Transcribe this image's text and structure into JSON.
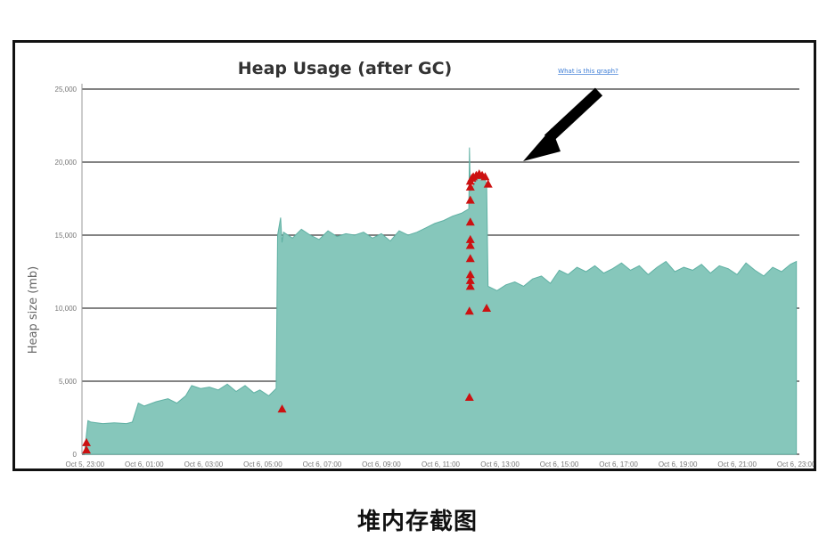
{
  "caption": "堆内存截图",
  "link_label": "What is this graph?",
  "colors": {
    "area": "#86c7bb",
    "area_stroke": "#5fb0a3",
    "marker": "#cc1111",
    "arrow": "#000000",
    "grid": "#5a5a5a",
    "link": "#3a7bd5"
  },
  "chart_data": {
    "type": "area",
    "title": "Heap Usage (after GC)",
    "ylabel": "Heap size (mb)",
    "xlabel": "",
    "ylim": [
      0,
      25000
    ],
    "yticks": [
      0,
      5000,
      10000,
      15000,
      20000,
      25000
    ],
    "ytick_labels": [
      "0",
      "5,000",
      "10,000",
      "15,000",
      "20,000",
      "25,000"
    ],
    "xlim": [
      22.9,
      47.1
    ],
    "xticks": [
      23,
      25,
      27,
      29,
      31,
      33,
      35,
      37,
      39,
      41,
      43,
      45,
      47
    ],
    "xtick_labels": [
      "Oct 5, 23:00",
      "Oct 6, 01:00",
      "Oct 6, 03:00",
      "Oct 6, 05:00",
      "Oct 6, 07:00",
      "Oct 6, 09:00",
      "Oct 6, 11:00",
      "Oct 6, 13:00",
      "Oct 6, 15:00",
      "Oct 6, 17:00",
      "Oct 6, 19:00",
      "Oct 6, 21:00",
      "Oct 6, 23:00"
    ],
    "grid": true,
    "series": [
      {
        "x": [
          23.0,
          23.1,
          23.2,
          23.6,
          24.0,
          24.4,
          24.6,
          24.8,
          25.0,
          25.4,
          25.8,
          26.1,
          26.4,
          26.6,
          26.9,
          27.2,
          27.5,
          27.8,
          28.1,
          28.4,
          28.7,
          28.9,
          29.2,
          29.45,
          29.5,
          29.6,
          29.65,
          29.7,
          30.0,
          30.3,
          30.6,
          30.9,
          31.2,
          31.5,
          31.8,
          32.1,
          32.4,
          32.7,
          33.0,
          33.3,
          33.6,
          33.9,
          34.2,
          34.5,
          34.8,
          35.1,
          35.4,
          35.7,
          35.95,
          35.97,
          36.0,
          36.2,
          36.4,
          36.55,
          36.6,
          36.9,
          37.2,
          37.5,
          37.8,
          38.1,
          38.4,
          38.7,
          39.0,
          39.3,
          39.6,
          39.9,
          40.2,
          40.5,
          40.8,
          41.1,
          41.4,
          41.7,
          42.0,
          42.3,
          42.6,
          42.9,
          43.2,
          43.5,
          43.8,
          44.1,
          44.4,
          44.7,
          45.0,
          45.3,
          45.6,
          45.9,
          46.2,
          46.5,
          46.8,
          47.0
        ],
        "y": [
          400,
          2300,
          2200,
          2100,
          2150,
          2100,
          2200,
          3500,
          3300,
          3600,
          3800,
          3500,
          4000,
          4700,
          4500,
          4600,
          4400,
          4800,
          4300,
          4700,
          4200,
          4400,
          4000,
          4500,
          15000,
          16200,
          14500,
          15200,
          14800,
          15400,
          15000,
          14700,
          15300,
          14900,
          15100,
          15000,
          15200,
          14800,
          15100,
          14600,
          15300,
          15000,
          15200,
          15500,
          15800,
          16000,
          16300,
          16500,
          16800,
          21000,
          18000,
          18800,
          19200,
          18500,
          11500,
          11200,
          11600,
          11800,
          11500,
          12000,
          12200,
          11700,
          12600,
          12300,
          12800,
          12500,
          12900,
          12400,
          12700,
          13100,
          12600,
          12900,
          12300,
          12800,
          13200,
          12500,
          12800,
          12600,
          13000,
          12400,
          12900,
          12700,
          12300,
          13100,
          12600,
          12200,
          12800,
          12500,
          13000,
          13200
        ]
      }
    ],
    "markers": {
      "x": [
        23.05,
        23.05,
        29.65,
        35.97,
        35.97,
        36.0,
        36.0,
        36.0,
        36.0,
        36.0,
        36.0,
        36.0,
        36.0,
        36.0,
        36.0,
        36.05,
        36.1,
        36.2,
        36.3,
        36.4,
        36.5,
        36.6,
        36.55
      ],
      "y": [
        300,
        800,
        3100,
        3900,
        9800,
        11500,
        11900,
        12300,
        13400,
        14300,
        14700,
        15900,
        17400,
        18300,
        18700,
        18900,
        19000,
        19100,
        19200,
        19100,
        19000,
        18500,
        10000
      ]
    }
  }
}
